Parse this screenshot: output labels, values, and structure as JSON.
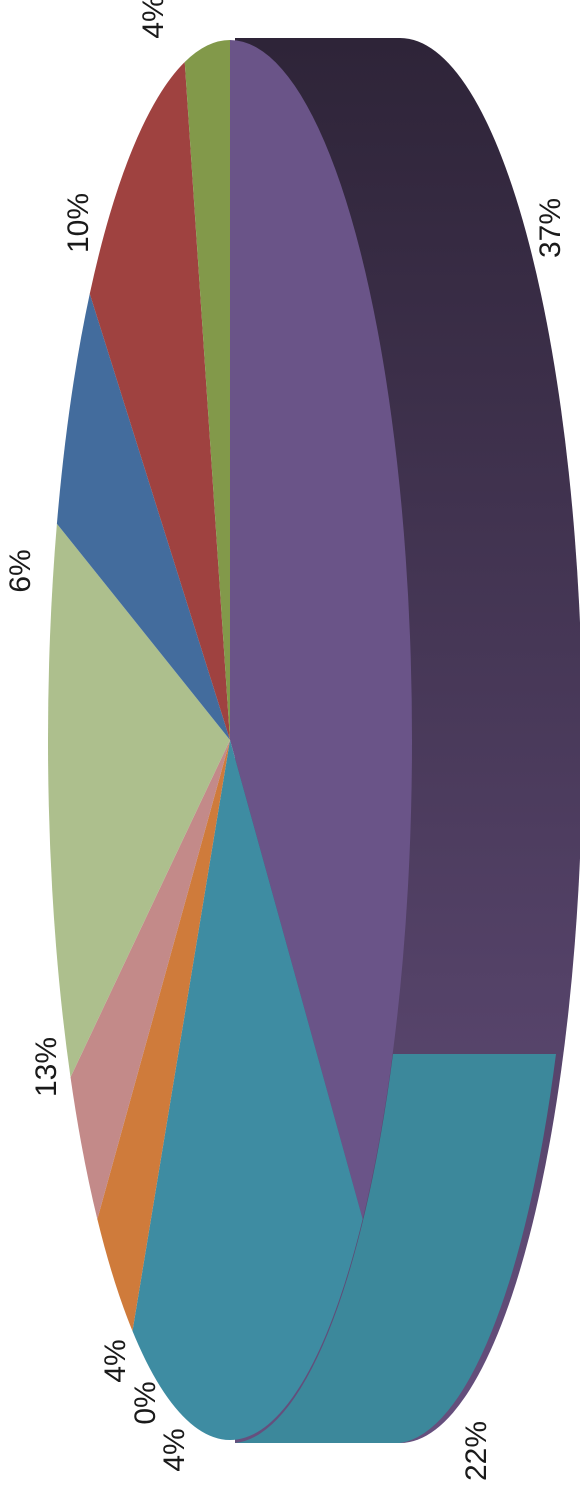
{
  "chart_data": {
    "type": "pie",
    "style": "3d",
    "orientation": "rotated 90 degrees",
    "slices": [
      {
        "label": "37%",
        "value": 37,
        "color": "#6a5488"
      },
      {
        "label": "22%",
        "value": 22,
        "color": "#3e8ca2"
      },
      {
        "label": "4%",
        "value": 4,
        "color": "#cf7b3b"
      },
      {
        "label": "0%",
        "value": 0,
        "color": "#cf7b3b"
      },
      {
        "label": "4%",
        "value": 4,
        "color": "#c38a89"
      },
      {
        "label": "13%",
        "value": 13,
        "color": "#adbf8d"
      },
      {
        "label": "6%",
        "value": 6,
        "color": "#436c9d"
      },
      {
        "label": "10%",
        "value": 10,
        "color": "#9f4240"
      },
      {
        "label": "4%",
        "value": 4,
        "color": "#82994a"
      }
    ],
    "side_colors": {
      "top": "#2e2438",
      "bottom": "#66507e",
      "teal": "#3c889b"
    }
  }
}
